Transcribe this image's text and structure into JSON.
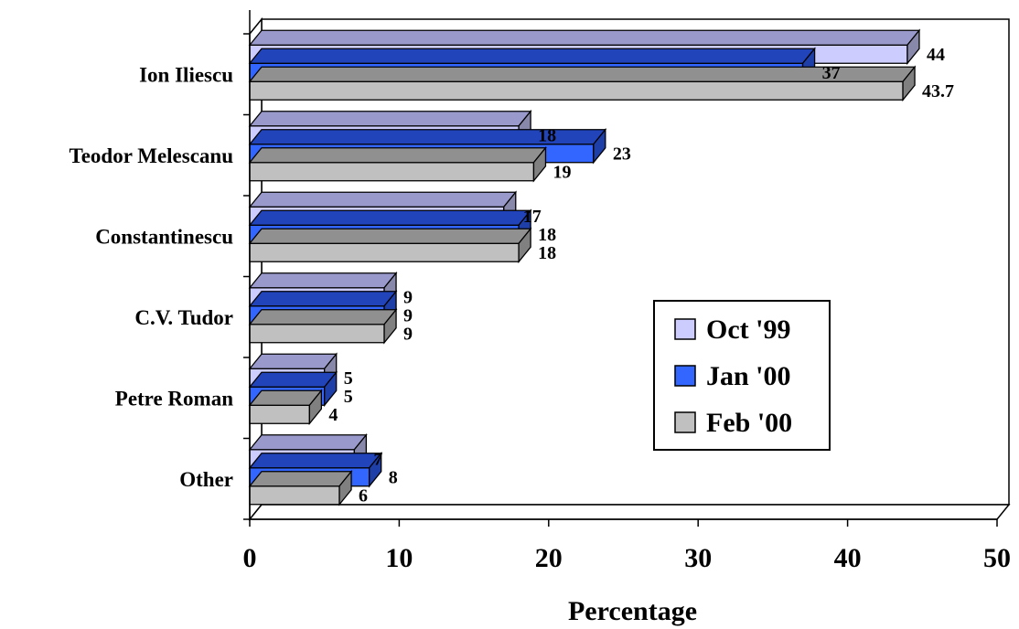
{
  "chart_data": {
    "type": "bar",
    "orientation": "horizontal",
    "three_d": true,
    "categories": [
      "Ion Iliescu",
      "Teodor Melescanu",
      "Constantinescu",
      "C.V. Tudor",
      "Petre Roman",
      "Other"
    ],
    "series": [
      {
        "name": "Oct '99",
        "color": "#ccccff",
        "top_color": "#9999cc",
        "side_color": "#8888aa",
        "values": [
          44,
          18,
          17,
          9,
          5,
          7
        ],
        "labels": [
          "44",
          "18",
          "17",
          "9",
          "5",
          "7"
        ]
      },
      {
        "name": "Jan '00",
        "color": "#3366ff",
        "top_color": "#2244bb",
        "side_color": "#1f3fa8",
        "values": [
          37,
          23,
          18,
          9,
          5,
          8
        ],
        "labels": [
          "37",
          "23",
          "18",
          "9",
          "5",
          "8"
        ]
      },
      {
        "name": "Feb '00",
        "color": "#c0c0c0",
        "top_color": "#909090",
        "side_color": "#808080",
        "values": [
          43.7,
          19,
          18,
          9,
          4,
          6
        ],
        "labels": [
          "43.7",
          "19",
          "18",
          "9",
          "4",
          "6"
        ]
      }
    ],
    "xlabel": "Percentage",
    "ylabel": "",
    "xlim": [
      0,
      50
    ],
    "xticks": [
      "0",
      "10",
      "20",
      "30",
      "40",
      "50"
    ],
    "grid": false,
    "legend_position": "right"
  }
}
